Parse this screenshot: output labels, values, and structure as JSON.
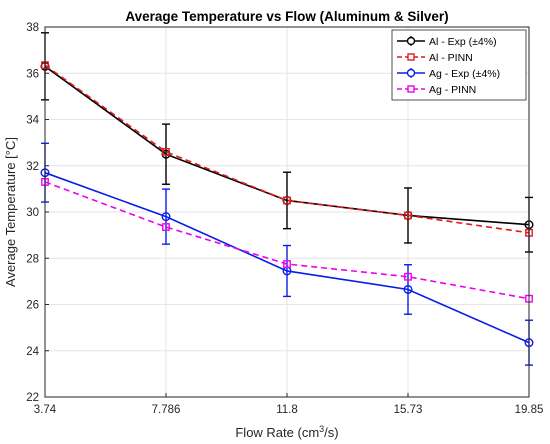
{
  "chart_data": {
    "type": "line",
    "title": "Average Temperature vs Flow (Aluminum & Silver)",
    "xlabel_main": "Flow Rate (cm",
    "xlabel_sup": "3",
    "xlabel_end": "/s)",
    "ylabel": "Average Temperature [°C]",
    "x_ticks": [
      "3.74",
      "7.786",
      "11.8",
      "15.73",
      "19.85"
    ],
    "y_ticks": [
      "22",
      "24",
      "26",
      "28",
      "30",
      "32",
      "34",
      "36",
      "38"
    ],
    "ylim": [
      22,
      38
    ],
    "grid": true,
    "legend_position": "top-right",
    "series": [
      {
        "name": "Al - Exp (±4%)",
        "color": "#000000",
        "style": "solid",
        "marker": "circle",
        "values": [
          36.3,
          32.5,
          30.5,
          29.85,
          29.45
        ],
        "error": [
          1.45,
          1.3,
          1.22,
          1.19,
          1.18
        ]
      },
      {
        "name": "Al - PINN",
        "color": "#e31a1c",
        "style": "dashed",
        "marker": "square",
        "values": [
          36.35,
          32.6,
          30.5,
          29.85,
          29.1
        ]
      },
      {
        "name": "Ag - Exp (±4%)",
        "color": "#0a1ee6",
        "style": "solid",
        "marker": "circle",
        "values": [
          31.7,
          29.8,
          27.45,
          26.65,
          24.35
        ],
        "error": [
          1.27,
          1.19,
          1.1,
          1.07,
          0.97
        ]
      },
      {
        "name": "Ag - PINN",
        "color": "#ee00ee",
        "style": "dashed",
        "marker": "square",
        "values": [
          31.3,
          29.35,
          27.75,
          27.2,
          26.25
        ]
      }
    ]
  }
}
